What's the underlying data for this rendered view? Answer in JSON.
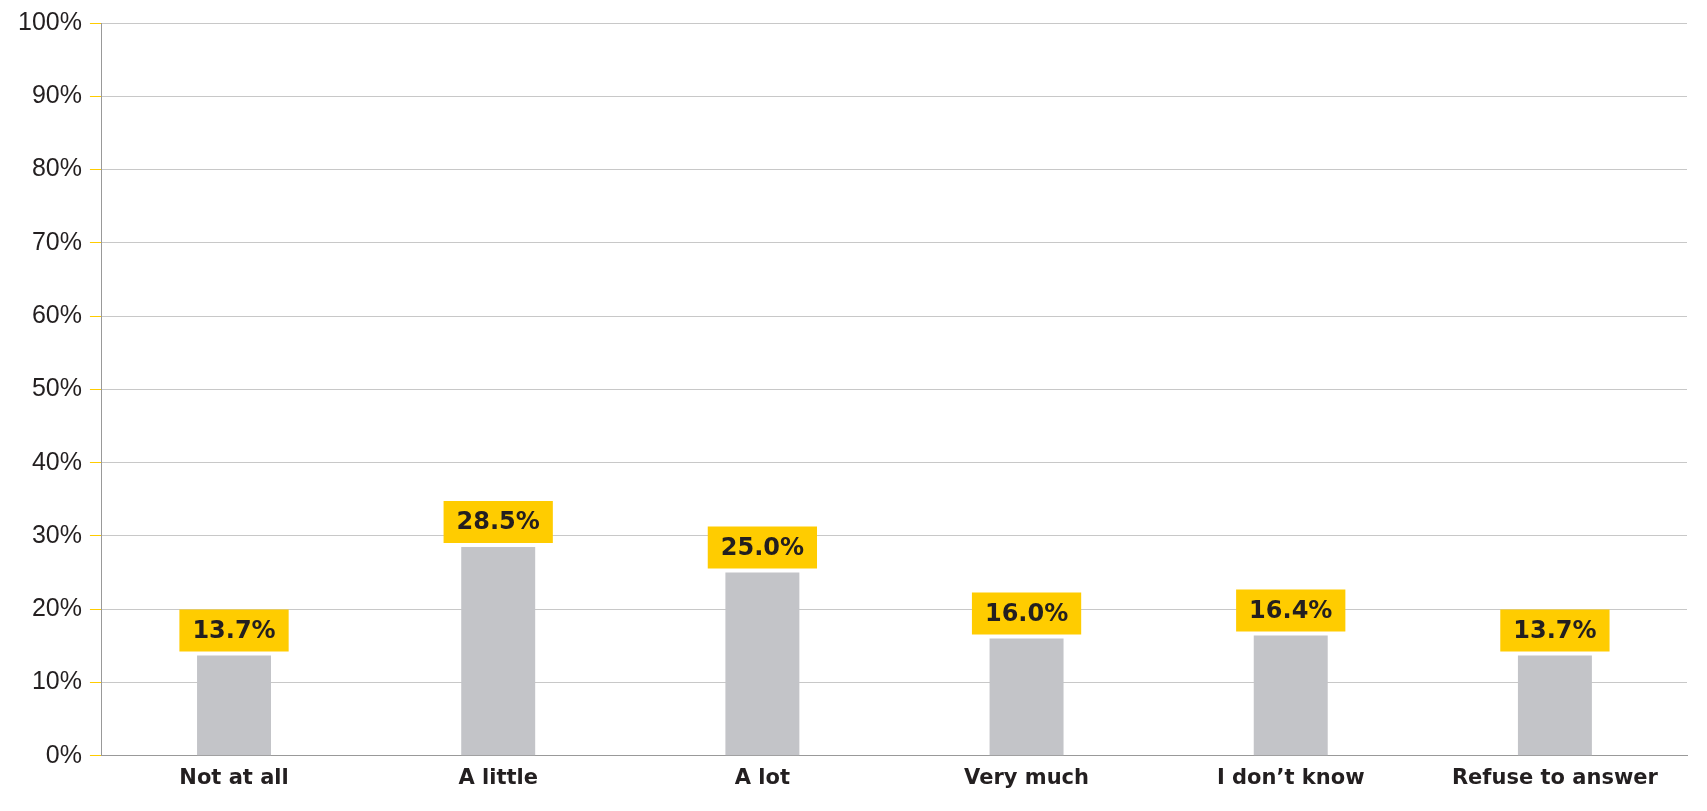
{
  "chart_data": {
    "type": "bar",
    "categories": [
      "Not at all",
      "A little",
      "A lot",
      "Very much",
      "I don’t know",
      "Refuse to answer"
    ],
    "values": [
      13.7,
      28.5,
      25.0,
      16.0,
      16.4,
      13.7
    ],
    "color": "#c3c4c8",
    "value_labels": [
      "13.7%",
      "28.5%",
      "25.0%",
      "16.0%",
      "16.4%",
      "13.7%"
    ],
    "ylim": [
      0,
      100
    ],
    "yticks": [
      {
        "value": 0,
        "label": "0%"
      },
      {
        "value": 10,
        "label": "10%"
      },
      {
        "value": 20,
        "label": "20%"
      },
      {
        "value": 30,
        "label": "30%"
      },
      {
        "value": 40,
        "label": "40%"
      },
      {
        "value": 50,
        "label": "50%"
      },
      {
        "value": 60,
        "label": "60%"
      },
      {
        "value": 70,
        "label": "70%"
      },
      {
        "value": 80,
        "label": "80%"
      },
      {
        "value": 90,
        "label": "90%"
      },
      {
        "value": 100,
        "label": "100%"
      }
    ],
    "grid": "y",
    "legend": false
  }
}
